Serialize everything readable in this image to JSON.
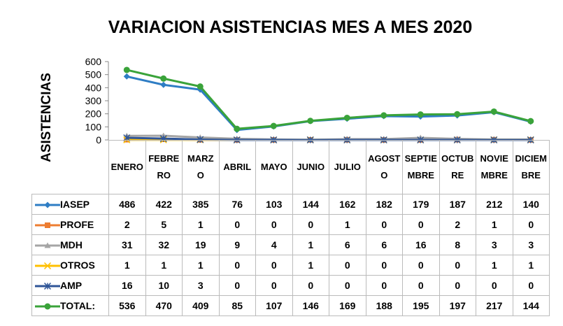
{
  "chart_data": {
    "type": "line",
    "title": "VARIACION ASISTENCIAS MES A MES 2020",
    "y_label": "ASISTENCIAS",
    "categories": [
      "ENERO",
      "FEBRERO",
      "MARZO",
      "ABRIL",
      "MAYO",
      "JUNIO",
      "JULIO",
      "AGOSTO",
      "SEPTIEMBRE",
      "OCTUBRE",
      "NOVIEMBRE",
      "DICIEMBRE"
    ],
    "series": [
      {
        "name": "IASEP",
        "color": "#2e7dc4",
        "marker": "diamond",
        "values": [
          486,
          422,
          385,
          76,
          103,
          144,
          162,
          182,
          179,
          187,
          212,
          140
        ]
      },
      {
        "name": "PROFE",
        "color": "#ed7d31",
        "marker": "square",
        "values": [
          2,
          5,
          1,
          0,
          0,
          0,
          1,
          0,
          0,
          2,
          1,
          0
        ]
      },
      {
        "name": "MDH",
        "color": "#a5a5a5",
        "marker": "triangle",
        "values": [
          31,
          32,
          19,
          9,
          4,
          1,
          6,
          6,
          16,
          8,
          3,
          3
        ]
      },
      {
        "name": "OTROS",
        "color": "#ffc000",
        "marker": "x",
        "values": [
          1,
          1,
          1,
          0,
          0,
          1,
          0,
          0,
          0,
          0,
          1,
          1
        ]
      },
      {
        "name": "AMP",
        "color": "#2f5597",
        "marker": "star",
        "values": [
          16,
          10,
          3,
          0,
          0,
          0,
          0,
          0,
          0,
          0,
          0,
          0
        ]
      },
      {
        "name": "TOTAL:",
        "color": "#3aa33a",
        "marker": "circle",
        "values": [
          536,
          470,
          409,
          85,
          107,
          146,
          169,
          188,
          195,
          197,
          217,
          144
        ]
      }
    ],
    "ylim": [
      0,
      600
    ],
    "yticks": [
      0,
      100,
      200,
      300,
      400,
      500,
      600
    ],
    "grid": false
  }
}
